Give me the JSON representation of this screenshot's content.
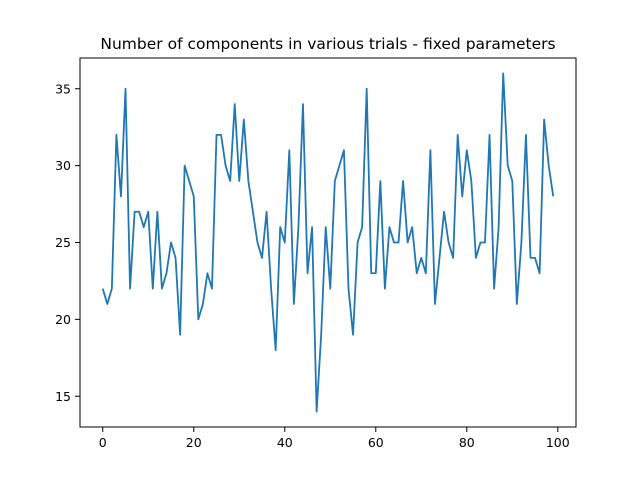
{
  "chart_data": {
    "type": "line",
    "title": "Number of components in various trials - fixed parameters",
    "xlabel": "",
    "ylabel": "",
    "xlim": [
      -5,
      104
    ],
    "ylim": [
      13,
      37
    ],
    "xticks": [
      0,
      20,
      40,
      60,
      80,
      100
    ],
    "yticks": [
      15,
      20,
      25,
      30,
      35
    ],
    "grid": false,
    "series": [
      {
        "color": "#1f77b4",
        "x": [
          0,
          1,
          2,
          3,
          4,
          5,
          6,
          7,
          8,
          9,
          10,
          11,
          12,
          13,
          14,
          15,
          16,
          17,
          18,
          19,
          20,
          21,
          22,
          23,
          24,
          25,
          26,
          27,
          28,
          29,
          30,
          31,
          32,
          33,
          34,
          35,
          36,
          37,
          38,
          39,
          40,
          41,
          42,
          43,
          44,
          45,
          46,
          47,
          48,
          49,
          50,
          51,
          52,
          53,
          54,
          55,
          56,
          57,
          58,
          59,
          60,
          61,
          62,
          63,
          64,
          65,
          66,
          67,
          68,
          69,
          70,
          71,
          72,
          73,
          74,
          75,
          76,
          77,
          78,
          79,
          80,
          81,
          82,
          83,
          84,
          85,
          86,
          87,
          88,
          89,
          90,
          91,
          92,
          93,
          94,
          95,
          96,
          97,
          98,
          99
        ],
        "values": [
          22,
          21,
          22,
          32,
          28,
          35,
          22,
          27,
          27,
          26,
          27,
          22,
          27,
          22,
          23,
          25,
          24,
          19,
          30,
          29,
          28,
          20,
          21,
          23,
          22,
          32,
          32,
          30,
          29,
          34,
          29,
          33,
          29,
          27,
          25,
          24,
          27,
          22,
          18,
          26,
          25,
          31,
          21,
          26,
          34,
          23,
          26,
          14,
          19,
          26,
          22,
          29,
          30,
          31,
          22,
          19,
          25,
          26,
          35,
          23,
          23,
          29,
          22,
          26,
          25,
          25,
          29,
          25,
          26,
          23,
          24,
          23,
          31,
          21,
          24,
          27,
          25,
          24,
          32,
          28,
          31,
          29,
          24,
          25,
          25,
          32,
          22,
          26,
          36,
          30,
          29,
          21,
          25,
          32,
          24,
          24,
          23,
          33,
          30,
          28
        ]
      }
    ]
  }
}
